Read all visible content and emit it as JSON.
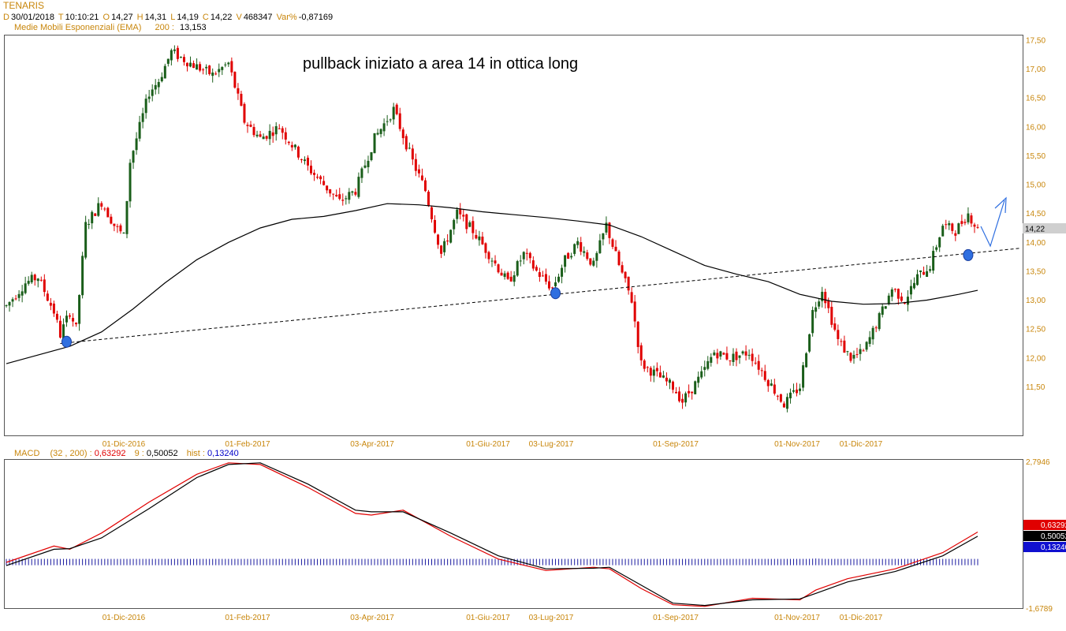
{
  "header": {
    "title": "TENARIS",
    "d_label": "D",
    "date": "30/01/2018",
    "t_label": "T",
    "time": "10:10:21",
    "o_label": "O",
    "open": "14,27",
    "h_label": "H",
    "high": "14,31",
    "l_label": "L",
    "low": "14,19",
    "c_label": "C",
    "close": "14,22",
    "v_label": "V",
    "volume": "468347",
    "var_label": "Var%",
    "var": "-0,87169"
  },
  "ema": {
    "label": "Medie Mobili Esponenziali (EMA)",
    "period": "200",
    "sep": ":",
    "value": "13,153"
  },
  "annotation": "pullback iniziato a area 14 in ottica long",
  "last_price_tag": "14,22",
  "macd": {
    "label": "MACD",
    "params": "(32 , 200)",
    "sep": ":",
    "value": "0,63292",
    "signal_period": "9",
    "signal_value": "0,50052",
    "hist_label": "hist",
    "hist_value": "0,13240",
    "tag_macd": "0,63292",
    "tag_signal": "0,50052",
    "tag_hist": "0,13240",
    "top_tick": "2,7946",
    "bottom_tick": "-1,6789"
  },
  "colors": {
    "up": "#1a5e1a",
    "down": "#e00000",
    "ema": "#000000",
    "trendline": "#000000",
    "marker": "#2f6fe0",
    "arrow": "#2f6fe0",
    "macd_line": "#e00000",
    "signal_line": "#000000",
    "hist": "#1a1aa0",
    "label_orange": "#c8860b"
  },
  "chart_data": [
    {
      "type": "candlestick",
      "title": "TENARIS",
      "x_ticks": [
        "01-Dic-2016",
        "01-Feb-2017",
        "03-Apr-2017",
        "01-Giu-2017",
        "03-Lug-2017",
        "01-Sep-2017",
        "01-Nov-2017",
        "01-Dic-2017"
      ],
      "y_ticks": [
        "17,50",
        "17,00",
        "16,50",
        "16,00",
        "15,50",
        "15,00",
        "14,50",
        "14,00",
        "13,50",
        "13,00",
        "12,50",
        "12,00",
        "11,50"
      ],
      "ylim": [
        10.8,
        17.6
      ],
      "price_path": [
        [
          0,
          12.9
        ],
        [
          6,
          13.3
        ],
        [
          10,
          13.4
        ],
        [
          15,
          12.8
        ],
        [
          17,
          12.4
        ],
        [
          20,
          12.8
        ],
        [
          22,
          12.5
        ],
        [
          25,
          14.3
        ],
        [
          30,
          14.7
        ],
        [
          34,
          14.3
        ],
        [
          37,
          14.1
        ],
        [
          39,
          15.4
        ],
        [
          45,
          16.6
        ],
        [
          48,
          16.8
        ],
        [
          52,
          17.3
        ],
        [
          58,
          17.1
        ],
        [
          65,
          16.9
        ],
        [
          70,
          17.1
        ],
        [
          75,
          16.1
        ],
        [
          80,
          15.8
        ],
        [
          86,
          16.0
        ],
        [
          95,
          15.3
        ],
        [
          105,
          14.7
        ],
        [
          110,
          14.9
        ],
        [
          116,
          15.8
        ],
        [
          122,
          16.3
        ],
        [
          128,
          15.4
        ],
        [
          132,
          14.9
        ],
        [
          137,
          13.8
        ],
        [
          142,
          14.5
        ],
        [
          147,
          14.2
        ],
        [
          152,
          13.8
        ],
        [
          158,
          13.3
        ],
        [
          163,
          13.8
        ],
        [
          167,
          13.5
        ],
        [
          172,
          13.2
        ],
        [
          176,
          13.7
        ],
        [
          180,
          14.0
        ],
        [
          185,
          13.6
        ],
        [
          189,
          14.3
        ],
        [
          193,
          13.6
        ],
        [
          197,
          13.0
        ],
        [
          200,
          11.9
        ],
        [
          205,
          11.7
        ],
        [
          210,
          11.5
        ],
        [
          213,
          11.25
        ],
        [
          219,
          11.7
        ],
        [
          223,
          12.1
        ],
        [
          228,
          12.0
        ],
        [
          234,
          12.1
        ],
        [
          240,
          11.6
        ],
        [
          245,
          11.2
        ],
        [
          250,
          11.5
        ],
        [
          254,
          12.8
        ],
        [
          257,
          13.2
        ],
        [
          262,
          12.3
        ],
        [
          266,
          12.0
        ],
        [
          270,
          12.1
        ],
        [
          275,
          12.7
        ],
        [
          279,
          13.2
        ],
        [
          283,
          13.0
        ],
        [
          287,
          13.4
        ],
        [
          291,
          13.6
        ],
        [
          295,
          14.3
        ],
        [
          299,
          14.2
        ],
        [
          303,
          14.5
        ],
        [
          306,
          14.22
        ]
      ],
      "ema_path": [
        [
          0,
          11.9
        ],
        [
          10,
          12.05
        ],
        [
          20,
          12.2
        ],
        [
          30,
          12.45
        ],
        [
          40,
          12.85
        ],
        [
          50,
          13.3
        ],
        [
          60,
          13.7
        ],
        [
          70,
          14.0
        ],
        [
          80,
          14.25
        ],
        [
          90,
          14.4
        ],
        [
          100,
          14.45
        ],
        [
          110,
          14.55
        ],
        [
          120,
          14.67
        ],
        [
          130,
          14.65
        ],
        [
          140,
          14.6
        ],
        [
          150,
          14.53
        ],
        [
          160,
          14.48
        ],
        [
          170,
          14.43
        ],
        [
          180,
          14.37
        ],
        [
          190,
          14.3
        ],
        [
          200,
          14.1
        ],
        [
          210,
          13.85
        ],
        [
          220,
          13.6
        ],
        [
          230,
          13.45
        ],
        [
          240,
          13.32
        ],
        [
          250,
          13.1
        ],
        [
          260,
          12.98
        ],
        [
          270,
          12.93
        ],
        [
          280,
          12.94
        ],
        [
          290,
          13.0
        ],
        [
          300,
          13.1
        ],
        [
          306,
          13.17
        ]
      ],
      "trendline": [
        [
          17,
          12.25
        ],
        [
          320,
          13.9
        ]
      ],
      "markers": [
        [
          19,
          12.28
        ],
        [
          173,
          13.12
        ],
        [
          303,
          13.78
        ]
      ]
    },
    {
      "type": "line",
      "title": "MACD",
      "series": [
        {
          "name": "MACD (32 , 200)",
          "path": [
            [
              0,
              -0.3
            ],
            [
              15,
              0.2
            ],
            [
              20,
              0.1
            ],
            [
              30,
              0.6
            ],
            [
              45,
              1.55
            ],
            [
              60,
              2.4
            ],
            [
              70,
              2.75
            ],
            [
              80,
              2.7
            ],
            [
              95,
              2.0
            ],
            [
              110,
              1.2
            ],
            [
              115,
              1.15
            ],
            [
              125,
              1.3
            ],
            [
              140,
              0.5
            ],
            [
              155,
              -0.2
            ],
            [
              170,
              -0.55
            ],
            [
              185,
              -0.45
            ],
            [
              190,
              -0.5
            ],
            [
              200,
              -1.1
            ],
            [
              210,
              -1.6
            ],
            [
              220,
              -1.65
            ],
            [
              235,
              -1.4
            ],
            [
              250,
              -1.45
            ],
            [
              255,
              -1.15
            ],
            [
              265,
              -0.8
            ],
            [
              280,
              -0.5
            ],
            [
              295,
              0.0
            ],
            [
              306,
              0.63
            ]
          ]
        },
        {
          "name": "9",
          "path": [
            [
              0,
              -0.4
            ],
            [
              15,
              0.1
            ],
            [
              20,
              0.12
            ],
            [
              30,
              0.45
            ],
            [
              45,
              1.35
            ],
            [
              60,
              2.3
            ],
            [
              70,
              2.7
            ],
            [
              80,
              2.75
            ],
            [
              95,
              2.1
            ],
            [
              110,
              1.3
            ],
            [
              115,
              1.25
            ],
            [
              125,
              1.25
            ],
            [
              140,
              0.6
            ],
            [
              155,
              -0.1
            ],
            [
              170,
              -0.5
            ],
            [
              185,
              -0.48
            ],
            [
              190,
              -0.45
            ],
            [
              200,
              -1.0
            ],
            [
              210,
              -1.55
            ],
            [
              220,
              -1.62
            ],
            [
              235,
              -1.45
            ],
            [
              250,
              -1.42
            ],
            [
              255,
              -1.25
            ],
            [
              265,
              -0.9
            ],
            [
              280,
              -0.58
            ],
            [
              295,
              -0.1
            ],
            [
              306,
              0.5
            ]
          ]
        }
      ],
      "hist_envelope": [
        [
          0,
          0.1
        ],
        [
          20,
          -0.05
        ],
        [
          45,
          0.2
        ],
        [
          60,
          0.08
        ],
        [
          75,
          -0.05
        ],
        [
          110,
          -0.08
        ],
        [
          125,
          0.05
        ],
        [
          150,
          -0.1
        ],
        [
          185,
          0.02
        ],
        [
          200,
          -0.08
        ],
        [
          230,
          -0.04
        ],
        [
          255,
          0.25
        ],
        [
          270,
          0.1
        ],
        [
          306,
          0.13
        ]
      ],
      "ylim": [
        -1.6789,
        2.7946
      ]
    }
  ]
}
